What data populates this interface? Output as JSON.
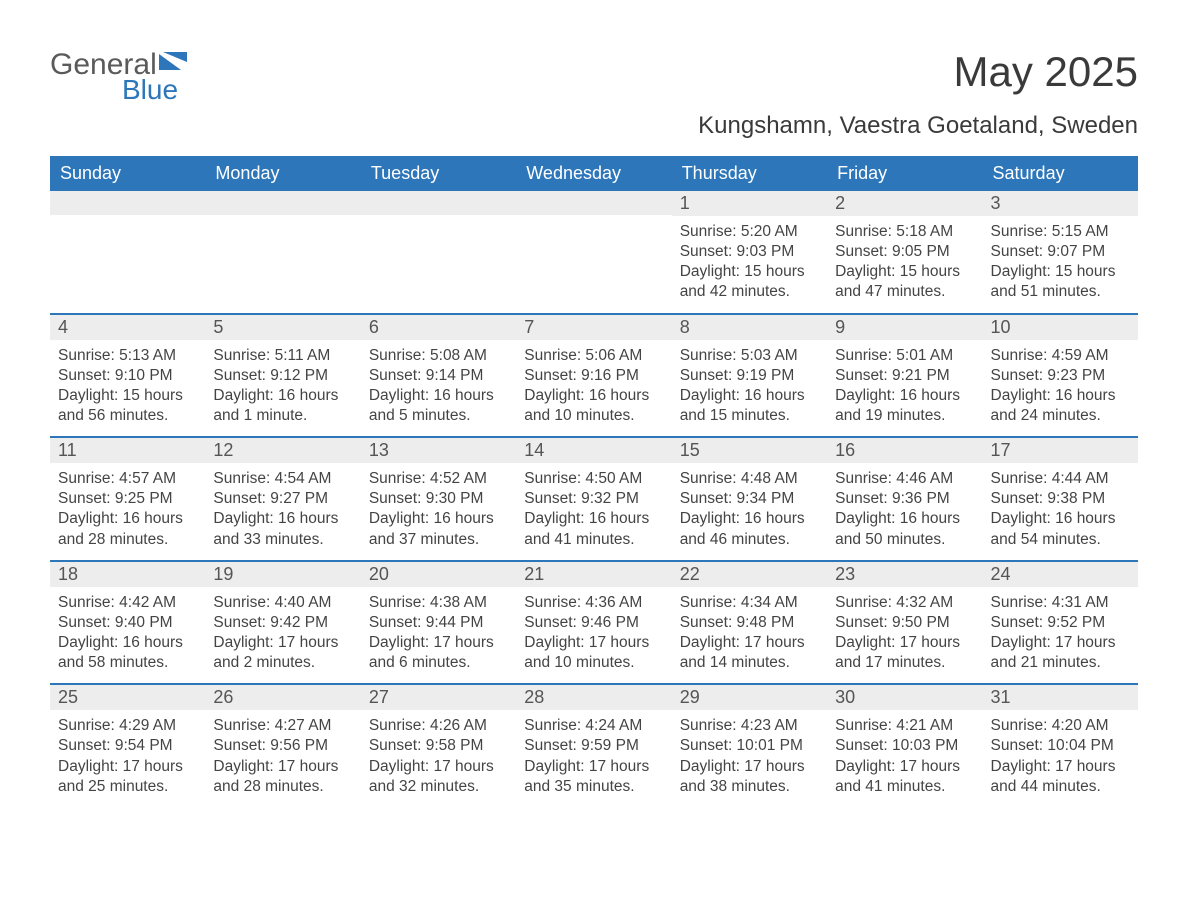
{
  "brand": {
    "text1": "General",
    "text2": "Blue",
    "icon_color": "#2d76ba"
  },
  "title": "May 2025",
  "location": "Kungshamn, Vaestra Goetaland, Sweden",
  "header_bg": "#2d76ba",
  "header_text_color": "#ffffff",
  "daynum_bg": "#ededed",
  "week_border_color": "#2d76ba",
  "background_color": "#ffffff",
  "text_color": "#444444",
  "title_fontsize": 42,
  "location_fontsize": 24,
  "dayhead_fontsize": 18,
  "body_fontsize": 15.5,
  "day_headers": [
    "Sunday",
    "Monday",
    "Tuesday",
    "Wednesday",
    "Thursday",
    "Friday",
    "Saturday"
  ],
  "weeks": [
    [
      null,
      null,
      null,
      null,
      {
        "num": "1",
        "sunrise": "5:20 AM",
        "sunset": "9:03 PM",
        "daylight": "15 hours and 42 minutes."
      },
      {
        "num": "2",
        "sunrise": "5:18 AM",
        "sunset": "9:05 PM",
        "daylight": "15 hours and 47 minutes."
      },
      {
        "num": "3",
        "sunrise": "5:15 AM",
        "sunset": "9:07 PM",
        "daylight": "15 hours and 51 minutes."
      }
    ],
    [
      {
        "num": "4",
        "sunrise": "5:13 AM",
        "sunset": "9:10 PM",
        "daylight": "15 hours and 56 minutes."
      },
      {
        "num": "5",
        "sunrise": "5:11 AM",
        "sunset": "9:12 PM",
        "daylight": "16 hours and 1 minute."
      },
      {
        "num": "6",
        "sunrise": "5:08 AM",
        "sunset": "9:14 PM",
        "daylight": "16 hours and 5 minutes."
      },
      {
        "num": "7",
        "sunrise": "5:06 AM",
        "sunset": "9:16 PM",
        "daylight": "16 hours and 10 minutes."
      },
      {
        "num": "8",
        "sunrise": "5:03 AM",
        "sunset": "9:19 PM",
        "daylight": "16 hours and 15 minutes."
      },
      {
        "num": "9",
        "sunrise": "5:01 AM",
        "sunset": "9:21 PM",
        "daylight": "16 hours and 19 minutes."
      },
      {
        "num": "10",
        "sunrise": "4:59 AM",
        "sunset": "9:23 PM",
        "daylight": "16 hours and 24 minutes."
      }
    ],
    [
      {
        "num": "11",
        "sunrise": "4:57 AM",
        "sunset": "9:25 PM",
        "daylight": "16 hours and 28 minutes."
      },
      {
        "num": "12",
        "sunrise": "4:54 AM",
        "sunset": "9:27 PM",
        "daylight": "16 hours and 33 minutes."
      },
      {
        "num": "13",
        "sunrise": "4:52 AM",
        "sunset": "9:30 PM",
        "daylight": "16 hours and 37 minutes."
      },
      {
        "num": "14",
        "sunrise": "4:50 AM",
        "sunset": "9:32 PM",
        "daylight": "16 hours and 41 minutes."
      },
      {
        "num": "15",
        "sunrise": "4:48 AM",
        "sunset": "9:34 PM",
        "daylight": "16 hours and 46 minutes."
      },
      {
        "num": "16",
        "sunrise": "4:46 AM",
        "sunset": "9:36 PM",
        "daylight": "16 hours and 50 minutes."
      },
      {
        "num": "17",
        "sunrise": "4:44 AM",
        "sunset": "9:38 PM",
        "daylight": "16 hours and 54 minutes."
      }
    ],
    [
      {
        "num": "18",
        "sunrise": "4:42 AM",
        "sunset": "9:40 PM",
        "daylight": "16 hours and 58 minutes."
      },
      {
        "num": "19",
        "sunrise": "4:40 AM",
        "sunset": "9:42 PM",
        "daylight": "17 hours and 2 minutes."
      },
      {
        "num": "20",
        "sunrise": "4:38 AM",
        "sunset": "9:44 PM",
        "daylight": "17 hours and 6 minutes."
      },
      {
        "num": "21",
        "sunrise": "4:36 AM",
        "sunset": "9:46 PM",
        "daylight": "17 hours and 10 minutes."
      },
      {
        "num": "22",
        "sunrise": "4:34 AM",
        "sunset": "9:48 PM",
        "daylight": "17 hours and 14 minutes."
      },
      {
        "num": "23",
        "sunrise": "4:32 AM",
        "sunset": "9:50 PM",
        "daylight": "17 hours and 17 minutes."
      },
      {
        "num": "24",
        "sunrise": "4:31 AM",
        "sunset": "9:52 PM",
        "daylight": "17 hours and 21 minutes."
      }
    ],
    [
      {
        "num": "25",
        "sunrise": "4:29 AM",
        "sunset": "9:54 PM",
        "daylight": "17 hours and 25 minutes."
      },
      {
        "num": "26",
        "sunrise": "4:27 AM",
        "sunset": "9:56 PM",
        "daylight": "17 hours and 28 minutes."
      },
      {
        "num": "27",
        "sunrise": "4:26 AM",
        "sunset": "9:58 PM",
        "daylight": "17 hours and 32 minutes."
      },
      {
        "num": "28",
        "sunrise": "4:24 AM",
        "sunset": "9:59 PM",
        "daylight": "17 hours and 35 minutes."
      },
      {
        "num": "29",
        "sunrise": "4:23 AM",
        "sunset": "10:01 PM",
        "daylight": "17 hours and 38 minutes."
      },
      {
        "num": "30",
        "sunrise": "4:21 AM",
        "sunset": "10:03 PM",
        "daylight": "17 hours and 41 minutes."
      },
      {
        "num": "31",
        "sunrise": "4:20 AM",
        "sunset": "10:04 PM",
        "daylight": "17 hours and 44 minutes."
      }
    ]
  ],
  "labels": {
    "sunrise": "Sunrise: ",
    "sunset": "Sunset: ",
    "daylight": "Daylight: "
  }
}
